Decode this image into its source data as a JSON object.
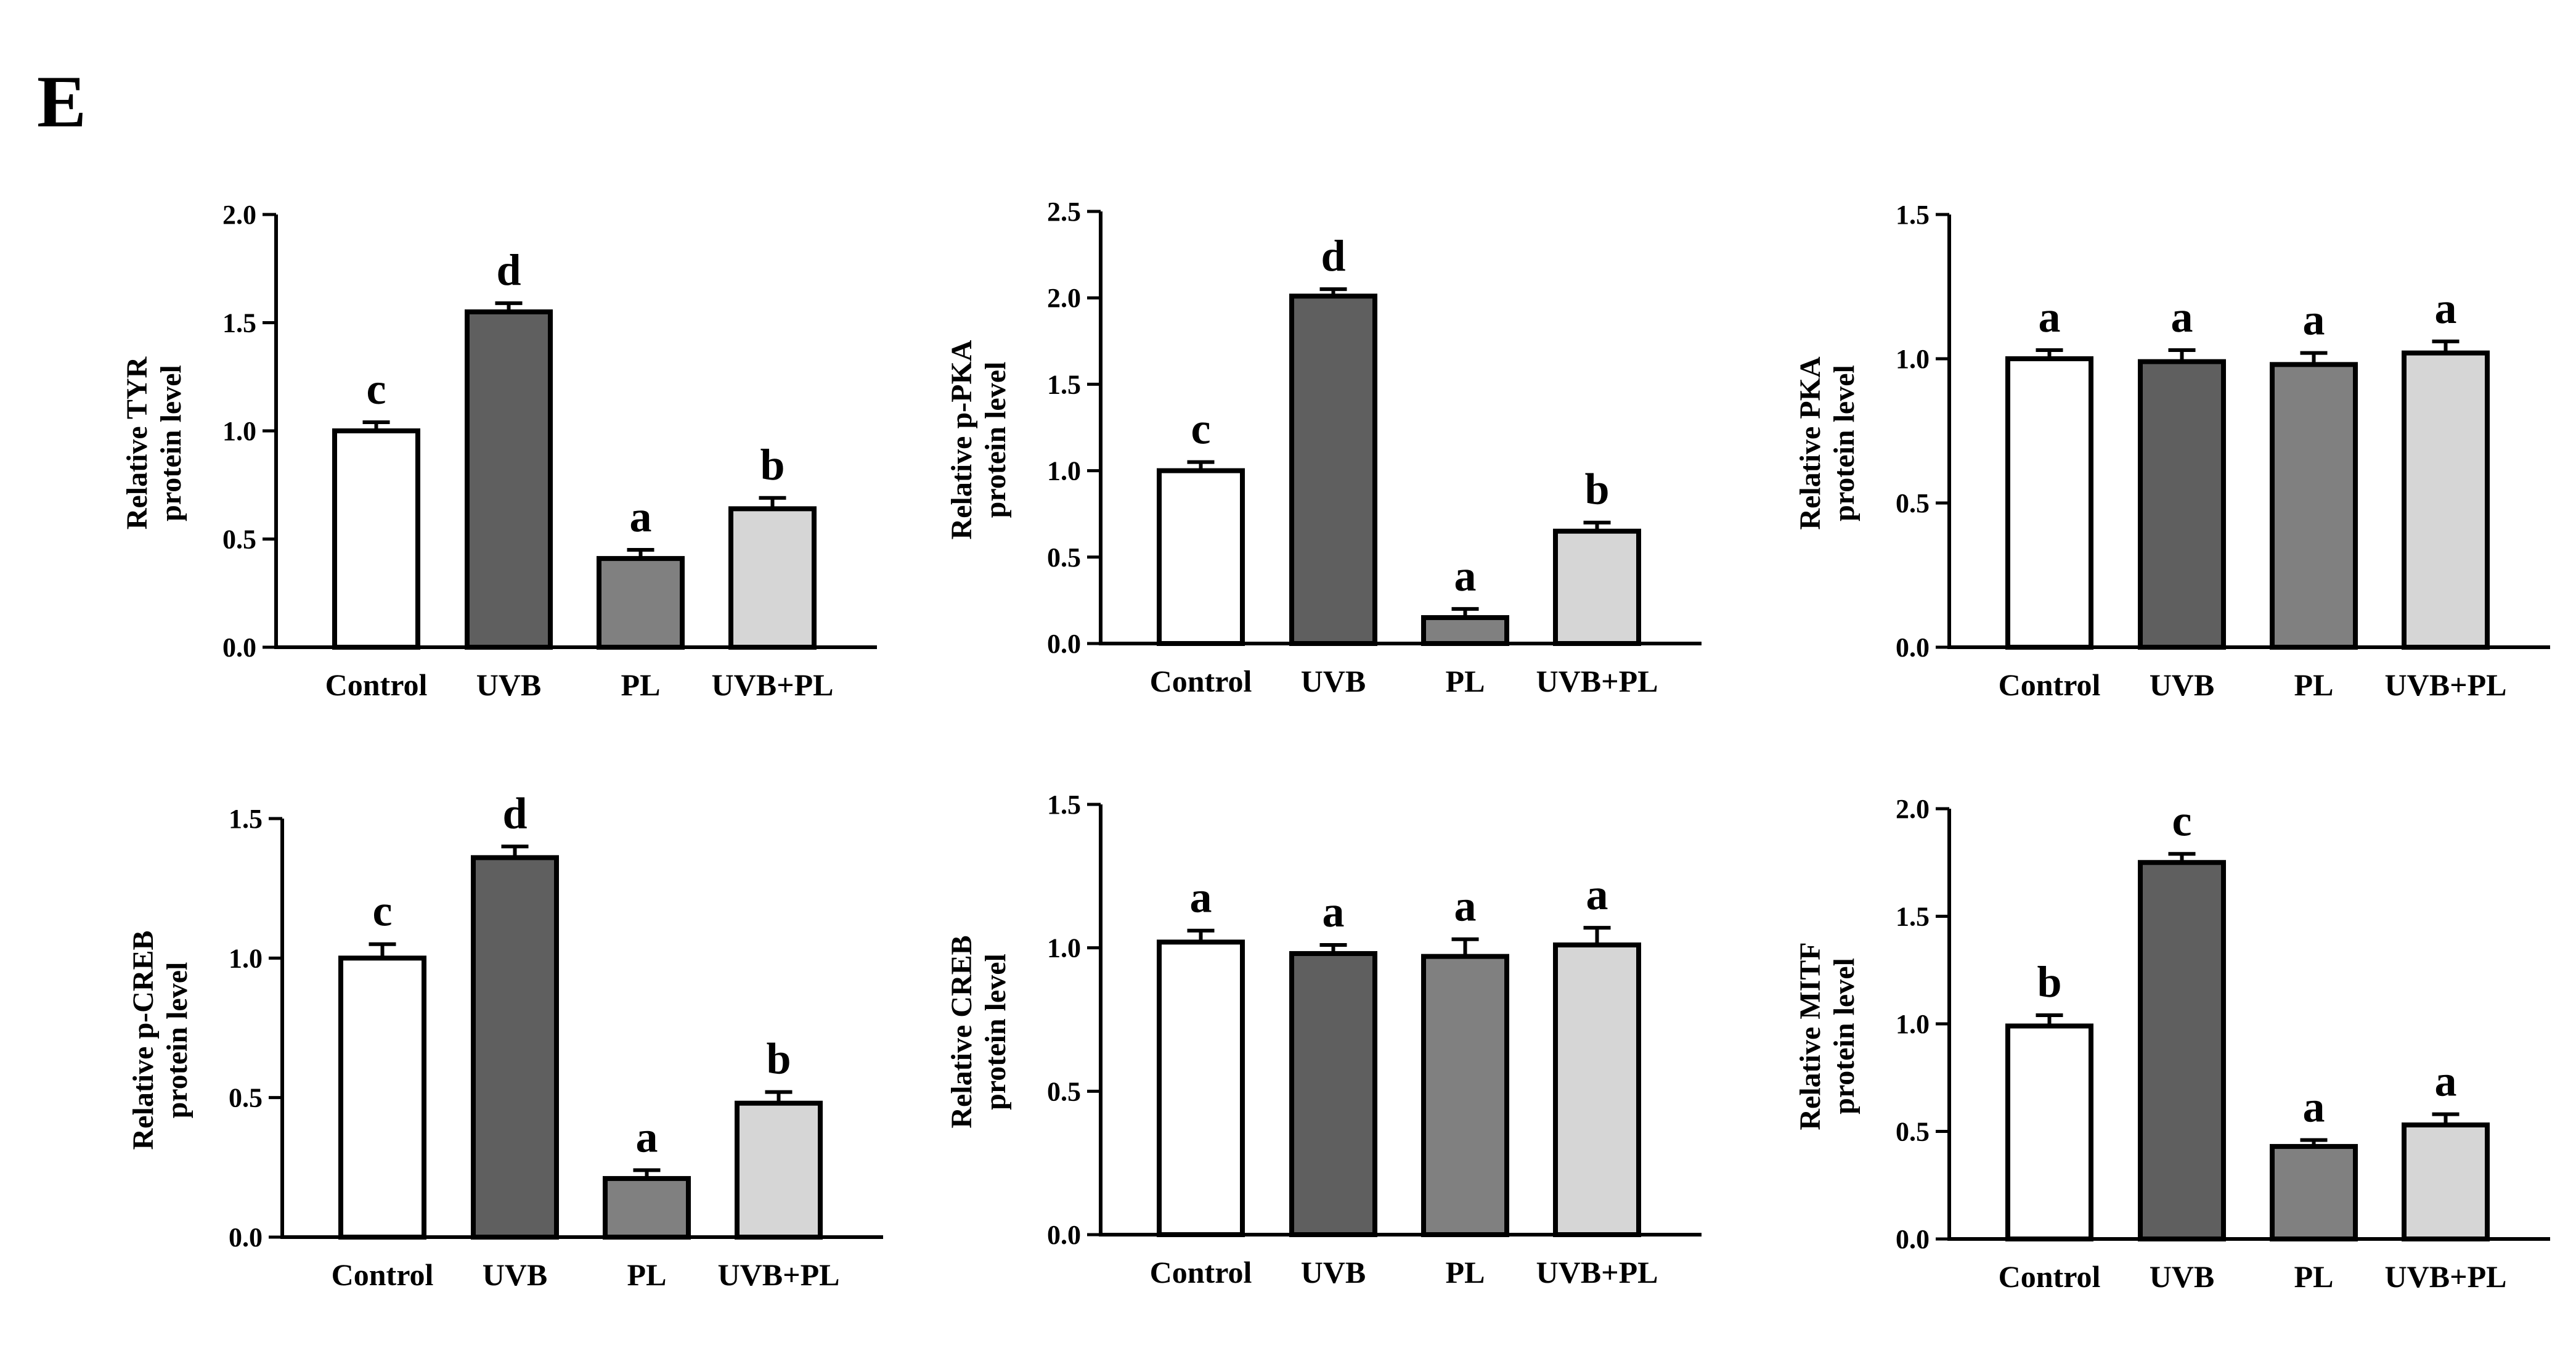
{
  "panel_label": "E",
  "colors": {
    "Control": "#ffffff",
    "UVB": "#5f5f5f",
    "PL": "#808080",
    "UVB+PL": "#d6d6d6",
    "stroke": "#000000"
  },
  "chart_data": [
    {
      "type": "bar",
      "title": "",
      "ylabel": [
        "Relative TYR",
        "protein level"
      ],
      "xlabel": "",
      "categories": [
        "Control",
        "UVB",
        "PL",
        "UVB+PL"
      ],
      "values": [
        1.0,
        1.55,
        0.41,
        0.64
      ],
      "errors": [
        0.04,
        0.04,
        0.04,
        0.05
      ],
      "letters": [
        "c",
        "d",
        "a",
        "b"
      ],
      "ylim": [
        0,
        2.0
      ],
      "yticks": [
        "0.0",
        "0.5",
        "1.0",
        "1.5",
        "2.0"
      ]
    },
    {
      "type": "bar",
      "title": "",
      "ylabel": [
        "Relative p-PKA",
        "protein level"
      ],
      "xlabel": "",
      "categories": [
        "Control",
        "UVB",
        "PL",
        "UVB+PL"
      ],
      "values": [
        1.0,
        2.01,
        0.15,
        0.65
      ],
      "errors": [
        0.05,
        0.04,
        0.05,
        0.05
      ],
      "letters": [
        "c",
        "d",
        "a",
        "b"
      ],
      "ylim": [
        0,
        2.5
      ],
      "yticks": [
        "0.0",
        "0.5",
        "1.0",
        "1.5",
        "2.0",
        "2.5"
      ]
    },
    {
      "type": "bar",
      "title": "",
      "ylabel": [
        "Relative PKA",
        "protein level"
      ],
      "xlabel": "",
      "categories": [
        "Control",
        "UVB",
        "PL",
        "UVB+PL"
      ],
      "values": [
        1.0,
        0.99,
        0.98,
        1.02
      ],
      "errors": [
        0.03,
        0.04,
        0.04,
        0.04
      ],
      "letters": [
        "a",
        "a",
        "a",
        "a"
      ],
      "ylim": [
        0,
        1.5
      ],
      "yticks": [
        "0.0",
        "0.5",
        "1.0",
        "1.5"
      ]
    },
    {
      "type": "bar",
      "title": "",
      "ylabel": [
        "Relative p-CREB",
        "protein level"
      ],
      "xlabel": "",
      "categories": [
        "Control",
        "UVB",
        "PL",
        "UVB+PL"
      ],
      "values": [
        1.0,
        1.36,
        0.21,
        0.48
      ],
      "errors": [
        0.05,
        0.04,
        0.03,
        0.04
      ],
      "letters": [
        "c",
        "d",
        "a",
        "b"
      ],
      "ylim": [
        0,
        1.5
      ],
      "yticks": [
        "0.0",
        "0.5",
        "1.0",
        "1.5"
      ]
    },
    {
      "type": "bar",
      "title": "",
      "ylabel": [
        "Relative CREB",
        "protein level"
      ],
      "xlabel": "",
      "categories": [
        "Control",
        "UVB",
        "PL",
        "UVB+PL"
      ],
      "values": [
        1.02,
        0.98,
        0.97,
        1.01
      ],
      "errors": [
        0.04,
        0.03,
        0.06,
        0.06
      ],
      "letters": [
        "a",
        "a",
        "a",
        "a"
      ],
      "ylim": [
        0,
        1.5
      ],
      "yticks": [
        "0.0",
        "0.5",
        "1.0",
        "1.5"
      ]
    },
    {
      "type": "bar",
      "title": "",
      "ylabel": [
        "Relative MITF",
        "protein level"
      ],
      "xlabel": "",
      "categories": [
        "Control",
        "UVB",
        "PL",
        "UVB+PL"
      ],
      "values": [
        0.99,
        1.75,
        0.43,
        0.53
      ],
      "errors": [
        0.05,
        0.04,
        0.03,
        0.05
      ],
      "letters": [
        "b",
        "c",
        "a",
        "a"
      ],
      "ylim": [
        0,
        2.0
      ],
      "yticks": [
        "0.0",
        "0.5",
        "1.0",
        "1.5",
        "2.0"
      ]
    }
  ]
}
